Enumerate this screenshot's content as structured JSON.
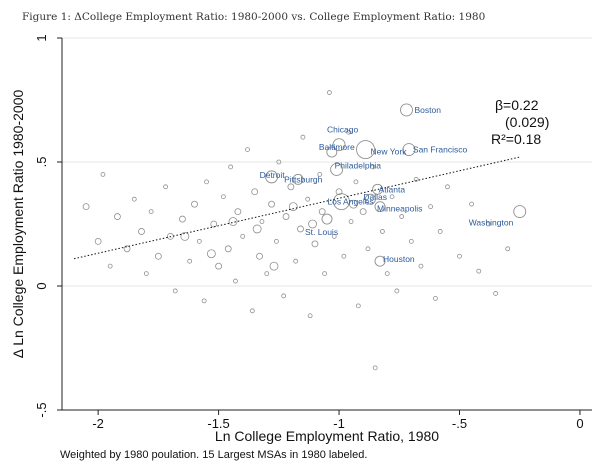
{
  "title": "Figure 1: ΔCollege Employment Ratio: 1980-2000 vs. College Employment Ratio: 1980",
  "note": "Weighted by 1980 poulation. 15 Largest MSAs in 1980 labeled.",
  "chart_data": {
    "type": "scatter",
    "title": "Figure 1: ΔCollege Employment Ratio: 1980-2000 vs. College Employment Ratio: 1980",
    "xlabel": "Ln College Employment Ratio, 1980",
    "ylabel": "Δ Ln College Employment Ratio 1980-2000",
    "xlim": [
      -2.15,
      0.05
    ],
    "ylim": [
      -0.5,
      1.0
    ],
    "x_ticks": [
      -2,
      -1.5,
      -1,
      -0.5,
      0
    ],
    "x_tick_labels": [
      "-2",
      "-1.5",
      "-1",
      "-.5",
      "0"
    ],
    "y_ticks": [
      -0.5,
      0,
      0.5,
      1
    ],
    "y_tick_labels": [
      "-.5",
      "0",
      ".5",
      "1"
    ],
    "grid": "horizontal",
    "annotations": {
      "beta": "β=0.22",
      "se": "(0.029)",
      "r2": "R²=0.18"
    },
    "fit_line": {
      "x": [
        -2.1,
        -0.25
      ],
      "y": [
        0.11,
        0.52
      ]
    },
    "labeled": [
      {
        "name": "Boston",
        "x": -0.72,
        "y": 0.71,
        "size": 6
      },
      {
        "name": "Chicago",
        "x": -1.0,
        "y": 0.57,
        "size": 6
      },
      {
        "name": "Baltimore",
        "x": -1.03,
        "y": 0.54,
        "size": 5
      },
      {
        "name": "New York",
        "x": -0.89,
        "y": 0.55,
        "size": 9
      },
      {
        "name": "San Francisco",
        "x": -0.71,
        "y": 0.55,
        "size": 6
      },
      {
        "name": "Philadelphia",
        "x": -1.01,
        "y": 0.47,
        "size": 6
      },
      {
        "name": "Detroit",
        "x": -1.28,
        "y": 0.44,
        "size": 6
      },
      {
        "name": "Pittsburgh",
        "x": -1.17,
        "y": 0.43,
        "size": 5
      },
      {
        "name": "Atlanta",
        "x": -0.84,
        "y": 0.39,
        "size": 5
      },
      {
        "name": "Los Angeles",
        "x": -0.99,
        "y": 0.34,
        "size": 8
      },
      {
        "name": "Dallas",
        "x": -0.87,
        "y": 0.35,
        "size": 5
      },
      {
        "name": "Minneapolis",
        "x": -0.83,
        "y": 0.32,
        "size": 5
      },
      {
        "name": "St. Louis",
        "x": -1.05,
        "y": 0.27,
        "size": 5
      },
      {
        "name": "Washington",
        "x": -0.25,
        "y": 0.3,
        "size": 6
      },
      {
        "name": "Houston",
        "x": -0.83,
        "y": 0.1,
        "size": 5
      }
    ],
    "unlabeled": [
      {
        "x": -2.05,
        "y": 0.32,
        "size": 3
      },
      {
        "x": -2.0,
        "y": 0.18,
        "size": 3
      },
      {
        "x": -1.98,
        "y": 0.45,
        "size": 2
      },
      {
        "x": -1.95,
        "y": 0.08,
        "size": 2
      },
      {
        "x": -1.92,
        "y": 0.28,
        "size": 3
      },
      {
        "x": -1.88,
        "y": 0.15,
        "size": 3
      },
      {
        "x": -1.85,
        "y": 0.35,
        "size": 2
      },
      {
        "x": -1.82,
        "y": 0.22,
        "size": 3
      },
      {
        "x": -1.8,
        "y": 0.05,
        "size": 2
      },
      {
        "x": -1.78,
        "y": 0.3,
        "size": 2
      },
      {
        "x": -1.75,
        "y": 0.12,
        "size": 3
      },
      {
        "x": -1.72,
        "y": 0.4,
        "size": 2
      },
      {
        "x": -1.7,
        "y": 0.2,
        "size": 3
      },
      {
        "x": -1.68,
        "y": -0.02,
        "size": 2
      },
      {
        "x": -1.65,
        "y": 0.27,
        "size": 3
      },
      {
        "x": -1.62,
        "y": 0.1,
        "size": 2
      },
      {
        "x": -1.6,
        "y": 0.33,
        "size": 3
      },
      {
        "x": -1.58,
        "y": 0.18,
        "size": 2
      },
      {
        "x": -1.56,
        "y": -0.06,
        "size": 2
      },
      {
        "x": -1.55,
        "y": 0.42,
        "size": 2
      },
      {
        "x": -1.52,
        "y": 0.25,
        "size": 3
      },
      {
        "x": -1.5,
        "y": 0.08,
        "size": 3
      },
      {
        "x": -1.48,
        "y": 0.36,
        "size": 2
      },
      {
        "x": -1.46,
        "y": 0.15,
        "size": 3
      },
      {
        "x": -1.45,
        "y": 0.48,
        "size": 2
      },
      {
        "x": -1.43,
        "y": 0.02,
        "size": 2
      },
      {
        "x": -1.42,
        "y": 0.3,
        "size": 3
      },
      {
        "x": -1.4,
        "y": 0.2,
        "size": 2
      },
      {
        "x": -1.38,
        "y": 0.55,
        "size": 2
      },
      {
        "x": -1.36,
        "y": -0.1,
        "size": 2
      },
      {
        "x": -1.35,
        "y": 0.38,
        "size": 3
      },
      {
        "x": -1.33,
        "y": 0.12,
        "size": 3
      },
      {
        "x": -1.32,
        "y": 0.26,
        "size": 2
      },
      {
        "x": -1.3,
        "y": 0.05,
        "size": 2
      },
      {
        "x": -1.28,
        "y": 0.33,
        "size": 3
      },
      {
        "x": -1.26,
        "y": 0.18,
        "size": 2
      },
      {
        "x": -1.25,
        "y": 0.5,
        "size": 2
      },
      {
        "x": -1.23,
        "y": -0.04,
        "size": 2
      },
      {
        "x": -1.22,
        "y": 0.28,
        "size": 3
      },
      {
        "x": -1.2,
        "y": 0.4,
        "size": 3
      },
      {
        "x": -1.18,
        "y": 0.1,
        "size": 2
      },
      {
        "x": -1.16,
        "y": 0.23,
        "size": 3
      },
      {
        "x": -1.15,
        "y": 0.6,
        "size": 2
      },
      {
        "x": -1.13,
        "y": 0.35,
        "size": 2
      },
      {
        "x": -1.12,
        "y": -0.12,
        "size": 2
      },
      {
        "x": -1.1,
        "y": 0.17,
        "size": 3
      },
      {
        "x": -1.08,
        "y": 0.45,
        "size": 2
      },
      {
        "x": -1.07,
        "y": 0.3,
        "size": 3
      },
      {
        "x": -1.06,
        "y": 0.05,
        "size": 2
      },
      {
        "x": -1.04,
        "y": 0.78,
        "size": 2
      },
      {
        "x": -1.02,
        "y": 0.2,
        "size": 2
      },
      {
        "x": -1.0,
        "y": 0.38,
        "size": 3
      },
      {
        "x": -0.98,
        "y": 0.12,
        "size": 2
      },
      {
        "x": -0.96,
        "y": 0.62,
        "size": 2
      },
      {
        "x": -0.95,
        "y": 0.26,
        "size": 2
      },
      {
        "x": -0.93,
        "y": 0.42,
        "size": 2
      },
      {
        "x": -0.92,
        "y": -0.08,
        "size": 2
      },
      {
        "x": -0.9,
        "y": 0.3,
        "size": 3
      },
      {
        "x": -0.88,
        "y": 0.15,
        "size": 2
      },
      {
        "x": -0.86,
        "y": 0.48,
        "size": 2
      },
      {
        "x": -0.85,
        "y": -0.33,
        "size": 2
      },
      {
        "x": -0.82,
        "y": 0.22,
        "size": 2
      },
      {
        "x": -0.8,
        "y": 0.05,
        "size": 2
      },
      {
        "x": -0.78,
        "y": 0.36,
        "size": 2
      },
      {
        "x": -0.76,
        "y": -0.02,
        "size": 2
      },
      {
        "x": -0.74,
        "y": 0.28,
        "size": 2
      },
      {
        "x": -0.7,
        "y": 0.18,
        "size": 2
      },
      {
        "x": -0.68,
        "y": 0.43,
        "size": 2
      },
      {
        "x": -0.66,
        "y": 0.08,
        "size": 2
      },
      {
        "x": -0.62,
        "y": 0.32,
        "size": 2
      },
      {
        "x": -0.6,
        "y": -0.05,
        "size": 2
      },
      {
        "x": -0.58,
        "y": 0.22,
        "size": 2
      },
      {
        "x": -0.55,
        "y": 0.4,
        "size": 2
      },
      {
        "x": -0.5,
        "y": 0.12,
        "size": 2
      },
      {
        "x": -0.45,
        "y": 0.33,
        "size": 2
      },
      {
        "x": -0.42,
        "y": 0.06,
        "size": 2
      },
      {
        "x": -0.38,
        "y": 0.25,
        "size": 2
      },
      {
        "x": -0.35,
        "y": -0.03,
        "size": 2
      },
      {
        "x": -0.3,
        "y": 0.15,
        "size": 2
      },
      {
        "x": -1.34,
        "y": 0.23,
        "size": 4
      },
      {
        "x": -1.19,
        "y": 0.32,
        "size": 4
      },
      {
        "x": -1.27,
        "y": 0.08,
        "size": 4
      },
      {
        "x": -1.44,
        "y": 0.26,
        "size": 4
      },
      {
        "x": -1.64,
        "y": 0.2,
        "size": 4
      },
      {
        "x": -1.11,
        "y": 0.25,
        "size": 4
      },
      {
        "x": -0.94,
        "y": 0.33,
        "size": 4
      },
      {
        "x": -1.53,
        "y": 0.13,
        "size": 4
      }
    ]
  }
}
